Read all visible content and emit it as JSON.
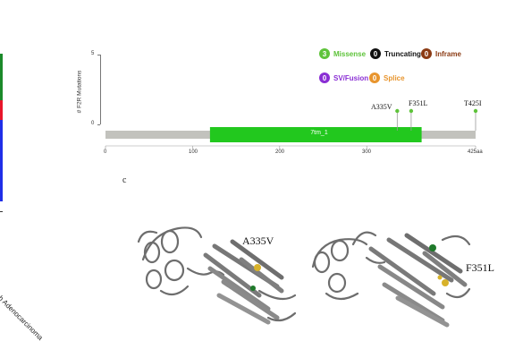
{
  "colors": {
    "missense": "#5ec33a",
    "truncating": "#111111",
    "inframe": "#8b3b14",
    "sv_fusion": "#8a2ed4",
    "splice": "#e8952e",
    "domain": "#22c81e",
    "backbone": "#c2c2bd"
  },
  "left_strip": {
    "colors": [
      "#1b8a2a",
      "#e8152a",
      "#1f2ee8"
    ],
    "rotated_label": "mach Adenocarcinoma"
  },
  "legend": [
    {
      "count": "3",
      "label": "Missense",
      "color": "#5ec33a",
      "label_color": "#5ec33a"
    },
    {
      "count": "0",
      "label": "Truncating",
      "color": "#111111",
      "label_color": "#111111"
    },
    {
      "count": "0",
      "label": "Inframe",
      "color": "#8b3b14",
      "label_color": "#8b3b14"
    },
    {
      "count": "0",
      "label": "SV/Fusion",
      "color": "#8a2ed4",
      "label_color": "#8a2ed4"
    },
    {
      "count": "0",
      "label": "Splice",
      "color": "#e8952e",
      "label_color": "#e8952e"
    }
  ],
  "lollipop": {
    "y_axis_label": "# F2R Mutations",
    "y_ticks": [
      "5",
      "0"
    ],
    "y_range": [
      0,
      5
    ],
    "protein_length": 425,
    "x_ticks": [
      {
        "pos": 0,
        "label": "0"
      },
      {
        "pos": 100,
        "label": "100"
      },
      {
        "pos": 200,
        "label": "200"
      },
      {
        "pos": 300,
        "label": "300"
      },
      {
        "pos": 425,
        "label": "425aa"
      }
    ],
    "domain": {
      "name": "7tm_1",
      "start": 120,
      "end": 363
    },
    "mutations": [
      {
        "label": "A335V",
        "pos": 335,
        "count": 1
      },
      {
        "label": "F351L",
        "pos": 351,
        "count": 1
      },
      {
        "label": "T425I",
        "pos": 425,
        "count": 1
      }
    ]
  },
  "panel_c": {
    "panel_label": "c",
    "structure_left_label": "A335V",
    "structure_right_label": "F351L"
  }
}
